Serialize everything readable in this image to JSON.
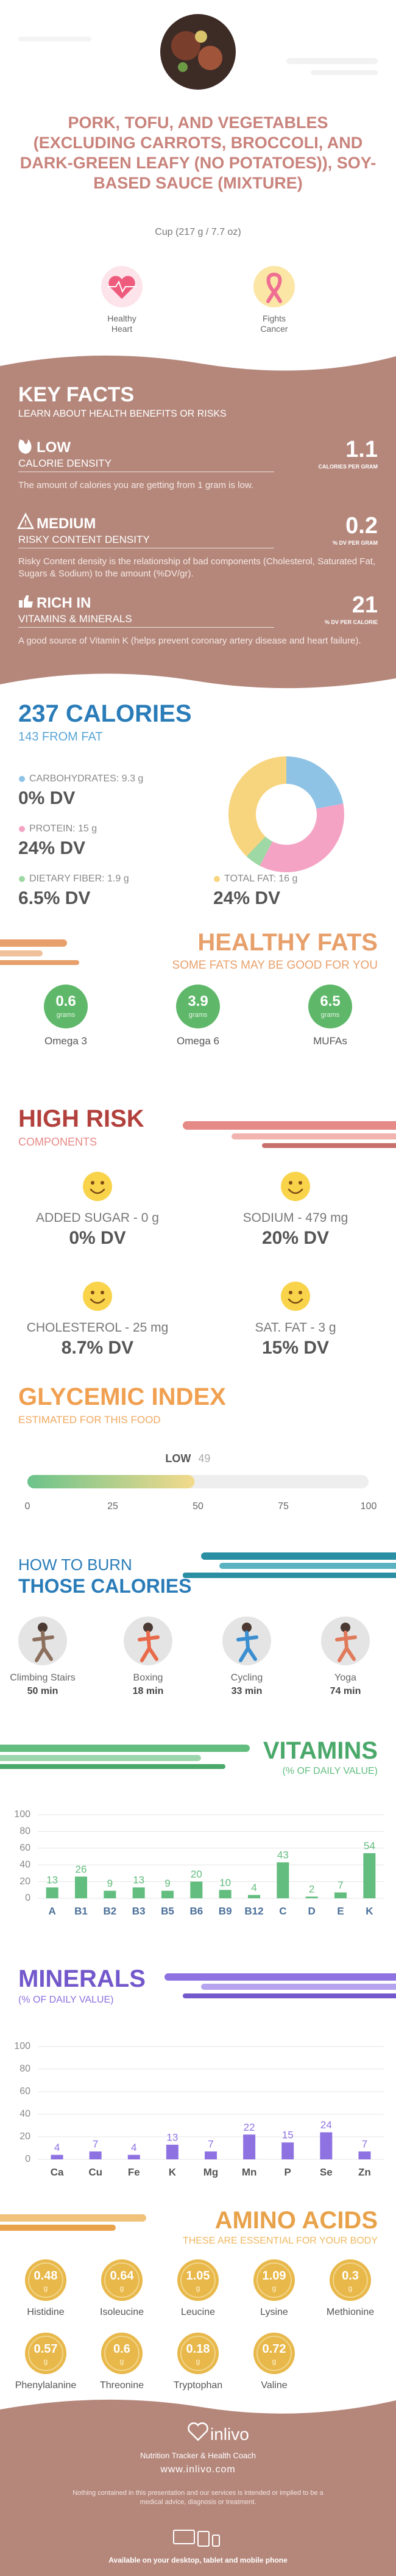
{
  "header": {
    "title": "PORK, TOFU, AND VEGETABLES (EXCLUDING CARROTS, BROCCOLI, AND DARK-GREEN LEAFY (NO POTATOES)), SOY-BASED SAUCE (MIXTURE)",
    "serving": "Cup (217 g / 7.7 oz)",
    "badges": [
      "Healthy Heart",
      "Fights Cancer"
    ]
  },
  "key_facts": {
    "title": "KEY FACTS",
    "subtitle": "LEARN ABOUT HEALTH BENEFITS OR RISKS",
    "items": [
      {
        "level": "LOW",
        "label": "CALORIE DENSITY",
        "value": 1.1,
        "unit": "CALORIES PER GRAM",
        "text": "The amount of calories you are getting from 1 gram is low."
      },
      {
        "level": "MEDIUM",
        "label": "RISKY CONTENT DENSITY",
        "value": 0.2,
        "unit": "% DV PER GRAM",
        "text": "Risky Content density is the relationship of bad components (Cholesterol, Saturated Fat, Sugars & Sodium) to the amount (%DV/gr)."
      },
      {
        "level": "RICH IN",
        "label": "VITAMINS & MINERALS",
        "value": 21,
        "unit": "% DV PER CALORIE",
        "text": "A good source of Vitamin K (helps prevent coronary artery disease and heart failure)."
      }
    ]
  },
  "calories": {
    "title": "237 CALORIES",
    "subtitle": "143 FROM FAT",
    "macros": [
      {
        "label": "CARBOHYDRATES: 9.3 g",
        "dv": "0% DV",
        "color": "#8ec3e6"
      },
      {
        "label": "PROTEIN: 15 g",
        "dv": "24% DV",
        "color": "#f4a3c4"
      },
      {
        "label": "DIETARY FIBER: 1.9 g",
        "dv": "6.5% DV",
        "color": "#9ed8a4"
      },
      {
        "label": "TOTAL FAT: 16 g",
        "dv": "24% DV",
        "color": "#f7d47e"
      }
    ],
    "donut": {
      "type": "pie",
      "values": [
        9.3,
        15,
        1.9,
        16
      ]
    }
  },
  "healthy_fats": {
    "title": "HEALTHY FATS",
    "subtitle": "SOME FATS MAY BE GOOD FOR YOU",
    "items": [
      {
        "value": 0.6,
        "unit": "grams",
        "name": "Omega 3"
      },
      {
        "value": 3.9,
        "unit": "grams",
        "name": "Omega 6"
      },
      {
        "value": 6.5,
        "unit": "grams",
        "name": "MUFAs"
      }
    ]
  },
  "high_risk": {
    "title": "HIGH RISK",
    "subtitle": "COMPONENTS",
    "items": [
      {
        "label": "ADDED SUGAR - 0 g",
        "dv": "0% DV"
      },
      {
        "label": "SODIUM - 479 mg",
        "dv": "20% DV"
      },
      {
        "label": "CHOLESTEROL - 25 mg",
        "dv": "8.7% DV"
      },
      {
        "label": "SAT. FAT - 3 g",
        "dv": "15% DV"
      }
    ]
  },
  "glycemic": {
    "type": "bar",
    "title": "GLYCEMIC INDEX",
    "subtitle": "ESTIMATED FOR THIS FOOD",
    "level": "LOW",
    "value": 49,
    "xlim": [
      0,
      100
    ],
    "xticks": [
      0,
      25,
      50,
      75,
      100
    ]
  },
  "burn": {
    "title": "HOW TO BURN",
    "subtitle": "THOSE CALORIES",
    "activities": [
      {
        "name": "Climbing Stairs",
        "time": "50 min"
      },
      {
        "name": "Boxing",
        "time": "18 min"
      },
      {
        "name": "Cycling",
        "time": "33 min"
      },
      {
        "name": "Yoga",
        "time": "74 min"
      }
    ]
  },
  "vitamins": {
    "type": "bar",
    "title": "VITAMINS",
    "subtitle": "(% OF DAILY VALUE)",
    "color": "#62bd7e",
    "categories": [
      "A",
      "B1",
      "B2",
      "B3",
      "B5",
      "B6",
      "B9",
      "B12",
      "C",
      "D",
      "E",
      "K"
    ],
    "values": [
      13,
      26,
      9,
      13,
      9,
      20,
      10,
      4,
      43,
      2,
      7,
      54
    ],
    "ylim": [
      0,
      100
    ],
    "yticks": [
      0,
      20,
      40,
      60,
      80,
      100
    ],
    "grid": true
  },
  "minerals": {
    "type": "bar",
    "title": "MINERALS",
    "subtitle": "(% OF DAILY VALUE)",
    "color": "#8e72e2",
    "categories": [
      "Ca",
      "Cu",
      "Fe",
      "K",
      "Mg",
      "Mn",
      "P",
      "Se",
      "Zn"
    ],
    "values": [
      4,
      7,
      4,
      13,
      7,
      22,
      15,
      24,
      7
    ],
    "ylim": [
      0,
      100
    ],
    "yticks": [
      0,
      20,
      40,
      60,
      80,
      100
    ],
    "grid": true
  },
  "amino_acids": {
    "title": "AMINO ACIDS",
    "subtitle": "THESE ARE ESSENTIAL FOR YOUR BODY",
    "unit": "g",
    "items": [
      {
        "name": "Histidine",
        "value": 0.48
      },
      {
        "name": "Isoleucine",
        "value": 0.64
      },
      {
        "name": "Leucine",
        "value": 1.05
      },
      {
        "name": "Lysine",
        "value": 1.09
      },
      {
        "name": "Methionine",
        "value": 0.3
      },
      {
        "name": "Phenylalanine",
        "value": 0.57
      },
      {
        "name": "Threonine",
        "value": 0.6
      },
      {
        "name": "Tryptophan",
        "value": 0.18
      },
      {
        "name": "Valine",
        "value": 0.72
      }
    ]
  },
  "footer": {
    "brand": "inlivo",
    "tagline": "Nutrition Tracker & Health Coach",
    "url": "www.inlivo.com",
    "disclaimer": "Nothing contained in this presentation and our services is intended or implied to be a medical advice, diagnosis or treatment.",
    "availability": "Available on your desktop, tablet and mobile phone"
  }
}
